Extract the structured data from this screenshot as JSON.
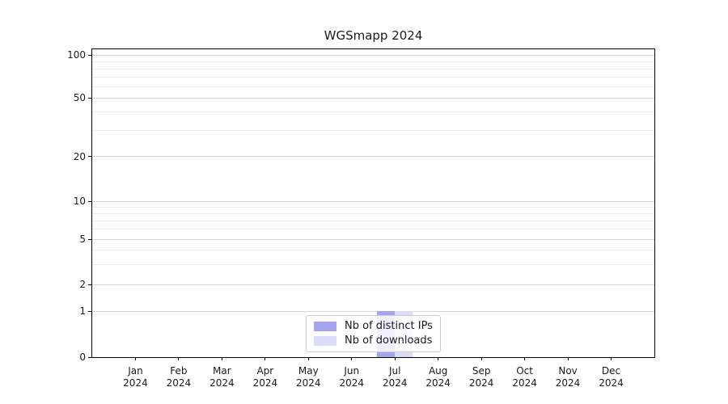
{
  "figure": {
    "title": "WGSmapp 2024"
  },
  "colors": {
    "distinct_ips_bar": "#a5a5ee",
    "downloads_bar": "#dcdcf8",
    "grid_major": "#d7d7d7",
    "grid_minor": "#ededed",
    "axis_frame": "#000000",
    "legend_border": "#cccccc"
  },
  "chart_data": {
    "type": "bar",
    "title": "WGSmapp 2024",
    "categories": [
      "Jan 2024",
      "Feb 2024",
      "Mar 2024",
      "Apr 2024",
      "May 2024",
      "Jun 2024",
      "Jul 2024",
      "Aug 2024",
      "Sep 2024",
      "Oct 2024",
      "Nov 2024",
      "Dec 2024"
    ],
    "series": [
      {
        "name": "Nb of distinct IPs",
        "color": "#a5a5ee",
        "values": [
          0,
          0,
          0,
          0,
          0,
          0,
          1,
          0,
          0,
          0,
          0,
          0
        ]
      },
      {
        "name": "Nb of downloads",
        "color": "#dcdcf8",
        "values": [
          0,
          0,
          0,
          0,
          0,
          0,
          1,
          0,
          0,
          0,
          0,
          0
        ]
      }
    ],
    "xlabel": "",
    "ylabel": "",
    "yscale": "symlog",
    "yticks": [
      0,
      1,
      2,
      5,
      10,
      20,
      50,
      100
    ],
    "minor_gridlines": [
      3,
      4,
      6,
      7,
      8,
      9,
      30,
      40,
      60,
      70,
      80,
      90
    ],
    "ylim": [
      0,
      111
    ],
    "grid": true,
    "legend_position": "lower center"
  }
}
